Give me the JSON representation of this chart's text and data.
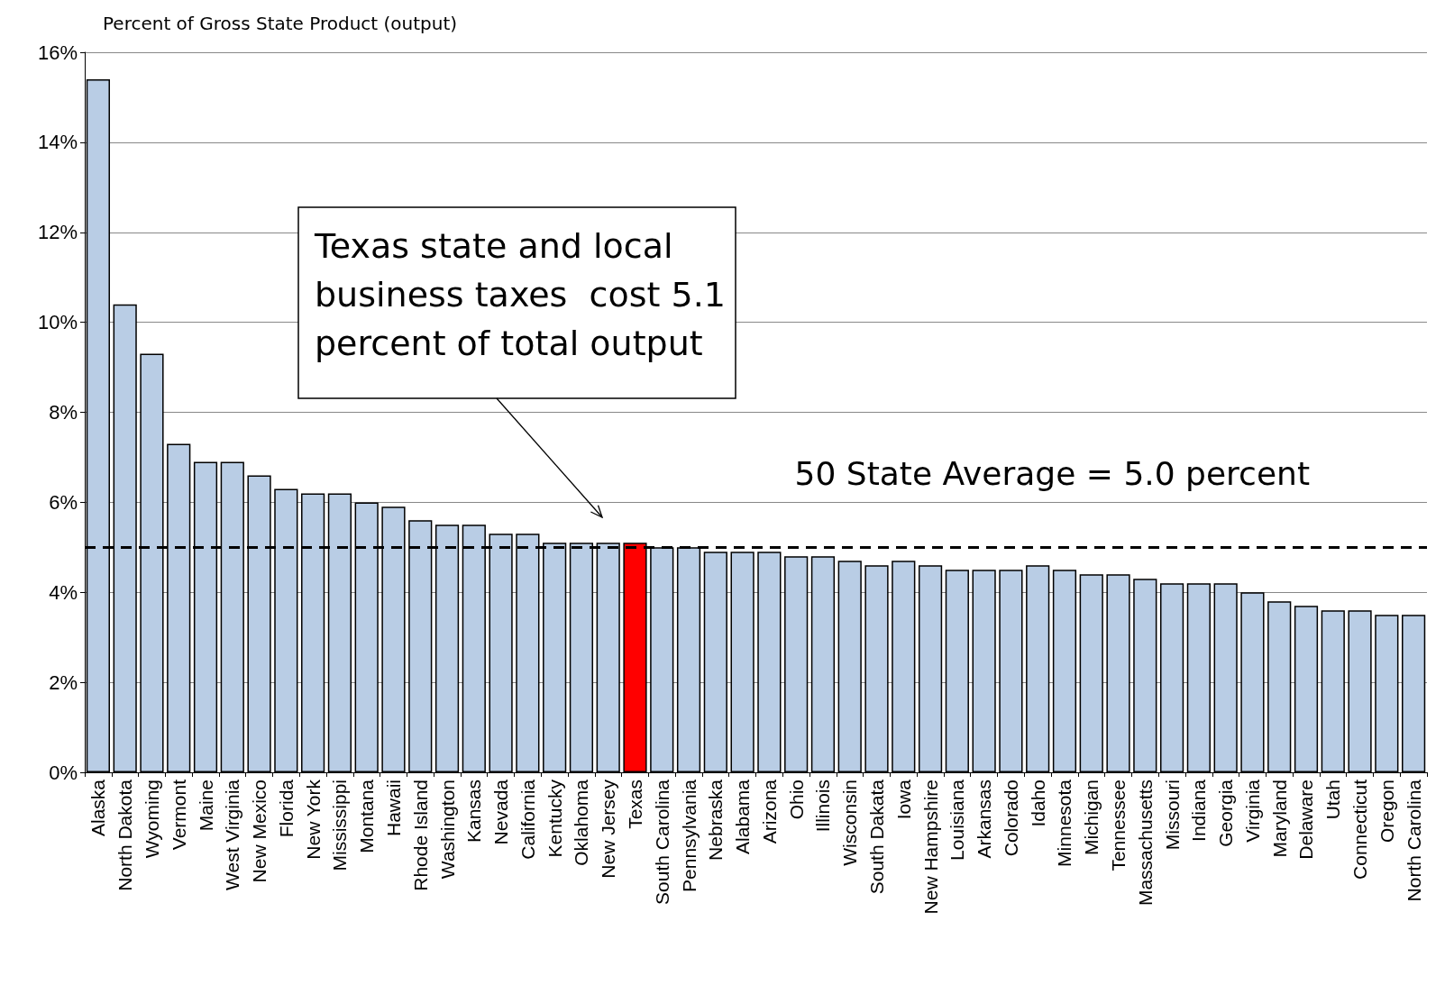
{
  "chart_data": {
    "type": "bar",
    "ylabel": "Percent of Gross State Product (output)",
    "categories": [
      "Alaska",
      "North Dakota",
      "Wyoming",
      "Vermont",
      "Maine",
      "West Virginia",
      "New Mexico",
      "Florida",
      "New York",
      "Mississippi",
      "Montana",
      "Hawaii",
      "Rhode Island",
      "Washington",
      "Kansas",
      "Nevada",
      "California",
      "Kentucky",
      "Oklahoma",
      "New Jersey",
      "Texas",
      "South Carolina",
      "Pennsylvania",
      "Nebraska",
      "Alabama",
      "Arizona",
      "Ohio",
      "Illinois",
      "Wisconsin",
      "South Dakata",
      "Iowa",
      "New Hampshire",
      "Louisiana",
      "Arkansas",
      "Colorado",
      "Idaho",
      "Minnesota",
      "Michigan",
      "Tennessee",
      "Massachusetts",
      "Missouri",
      "Indiana",
      "Georgia",
      "Virginia",
      "Maryland",
      "Delaware",
      "Utah",
      "Connecticut",
      "Oregon",
      "North Carolina"
    ],
    "values": [
      15.4,
      10.4,
      9.3,
      7.3,
      6.9,
      6.9,
      6.6,
      6.3,
      6.2,
      6.2,
      6.0,
      5.9,
      5.6,
      5.5,
      5.5,
      5.3,
      5.3,
      5.1,
      5.1,
      5.1,
      5.1,
      5.0,
      5.0,
      4.9,
      4.9,
      4.9,
      4.8,
      4.8,
      4.7,
      4.6,
      4.7,
      4.6,
      4.5,
      4.5,
      4.5,
      4.6,
      4.5,
      4.4,
      4.4,
      4.3,
      4.2,
      4.2,
      4.2,
      4.0,
      3.8,
      3.7,
      3.6,
      3.6,
      3.5,
      3.5
    ],
    "colors": [
      "#b9cde5",
      "#b9cde5",
      "#b9cde5",
      "#b9cde5",
      "#b9cde5",
      "#b9cde5",
      "#b9cde5",
      "#b9cde5",
      "#b9cde5",
      "#b9cde5",
      "#b9cde5",
      "#b9cde5",
      "#b9cde5",
      "#b9cde5",
      "#b9cde5",
      "#b9cde5",
      "#b9cde5",
      "#b9cde5",
      "#b9cde5",
      "#b9cde5",
      "#ff0000",
      "#b9cde5",
      "#b9cde5",
      "#b9cde5",
      "#b9cde5",
      "#b9cde5",
      "#b9cde5",
      "#b9cde5",
      "#b9cde5",
      "#b9cde5",
      "#b9cde5",
      "#b9cde5",
      "#b9cde5",
      "#b9cde5",
      "#b9cde5",
      "#b9cde5",
      "#b9cde5",
      "#b9cde5",
      "#b9cde5",
      "#b9cde5",
      "#b9cde5",
      "#b9cde5",
      "#b9cde5",
      "#b9cde5",
      "#b9cde5",
      "#b9cde5",
      "#b9cde5",
      "#b9cde5",
      "#b9cde5",
      "#b9cde5"
    ],
    "ylim": [
      0,
      16
    ],
    "yticks": [
      {
        "value": 0,
        "label": "0%"
      },
      {
        "value": 2,
        "label": "2%"
      },
      {
        "value": 4,
        "label": "4%"
      },
      {
        "value": 6,
        "label": "6%"
      },
      {
        "value": 8,
        "label": "8%"
      },
      {
        "value": 10,
        "label": "10%"
      },
      {
        "value": 12,
        "label": "12%"
      },
      {
        "value": 14,
        "label": "14%"
      },
      {
        "value": 16,
        "label": "16%"
      }
    ],
    "grid": "y",
    "ref_lines": [
      {
        "axis": "y",
        "value": 5.0,
        "label": "50 State Average = 5.0 percent",
        "color": "#000000",
        "line_style": "dashed"
      }
    ],
    "annotations": [
      "Texas state and local\nbusiness taxes  cost 5.1\npercent of total output"
    ]
  }
}
